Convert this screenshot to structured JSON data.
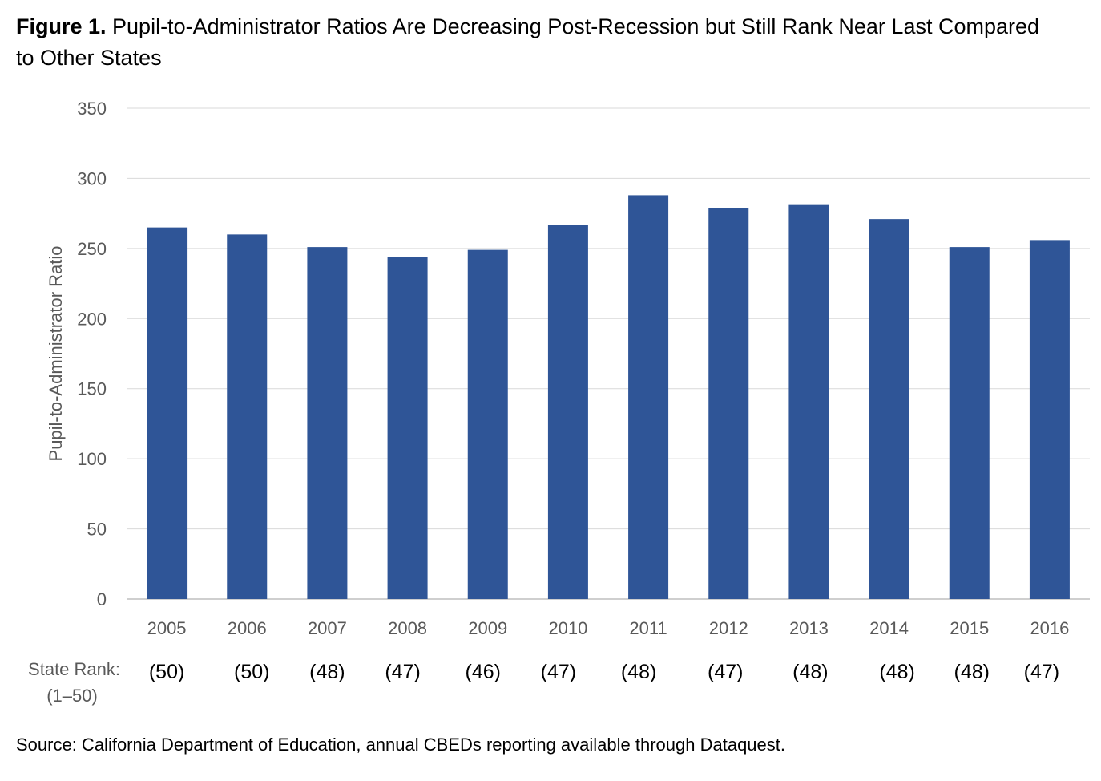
{
  "figure": {
    "title_lead": "Figure 1.",
    "title_text": " Pupil-to-Administrator Ratios Are Decreasing Post-Recession but Still Rank Near Last Compared to Other States",
    "source": "Source: California Department of Education, annual CBEDs reporting available through Dataquest."
  },
  "chart_data": {
    "type": "bar",
    "title": "Pupil-to-Administrator Ratios Are Decreasing Post-Recession but Still Rank Near Last Compared to Other States",
    "xlabel": "",
    "ylabel": "Pupil-to-Administrator Ratio",
    "ylim": [
      0,
      350
    ],
    "yticks": [
      0,
      50,
      100,
      150,
      200,
      250,
      300,
      350
    ],
    "grid": true,
    "categories": [
      "2005",
      "2006",
      "2007",
      "2008",
      "2009",
      "2010",
      "2011",
      "2012",
      "2013",
      "2014",
      "2015",
      "2016"
    ],
    "values": [
      265,
      260,
      251,
      244,
      249,
      267,
      288,
      279,
      281,
      271,
      251,
      256
    ],
    "bar_color": "#2F5597",
    "state_rank": {
      "caption_line1": "State Rank:",
      "caption_line2": "(1–50)",
      "labels": [
        "(50)",
        "(50)",
        "(48)",
        "(47)",
        "(46)",
        "(47)",
        "(48)",
        "(47)",
        "(48)",
        "(48)",
        "(48)",
        "(47)"
      ]
    }
  }
}
